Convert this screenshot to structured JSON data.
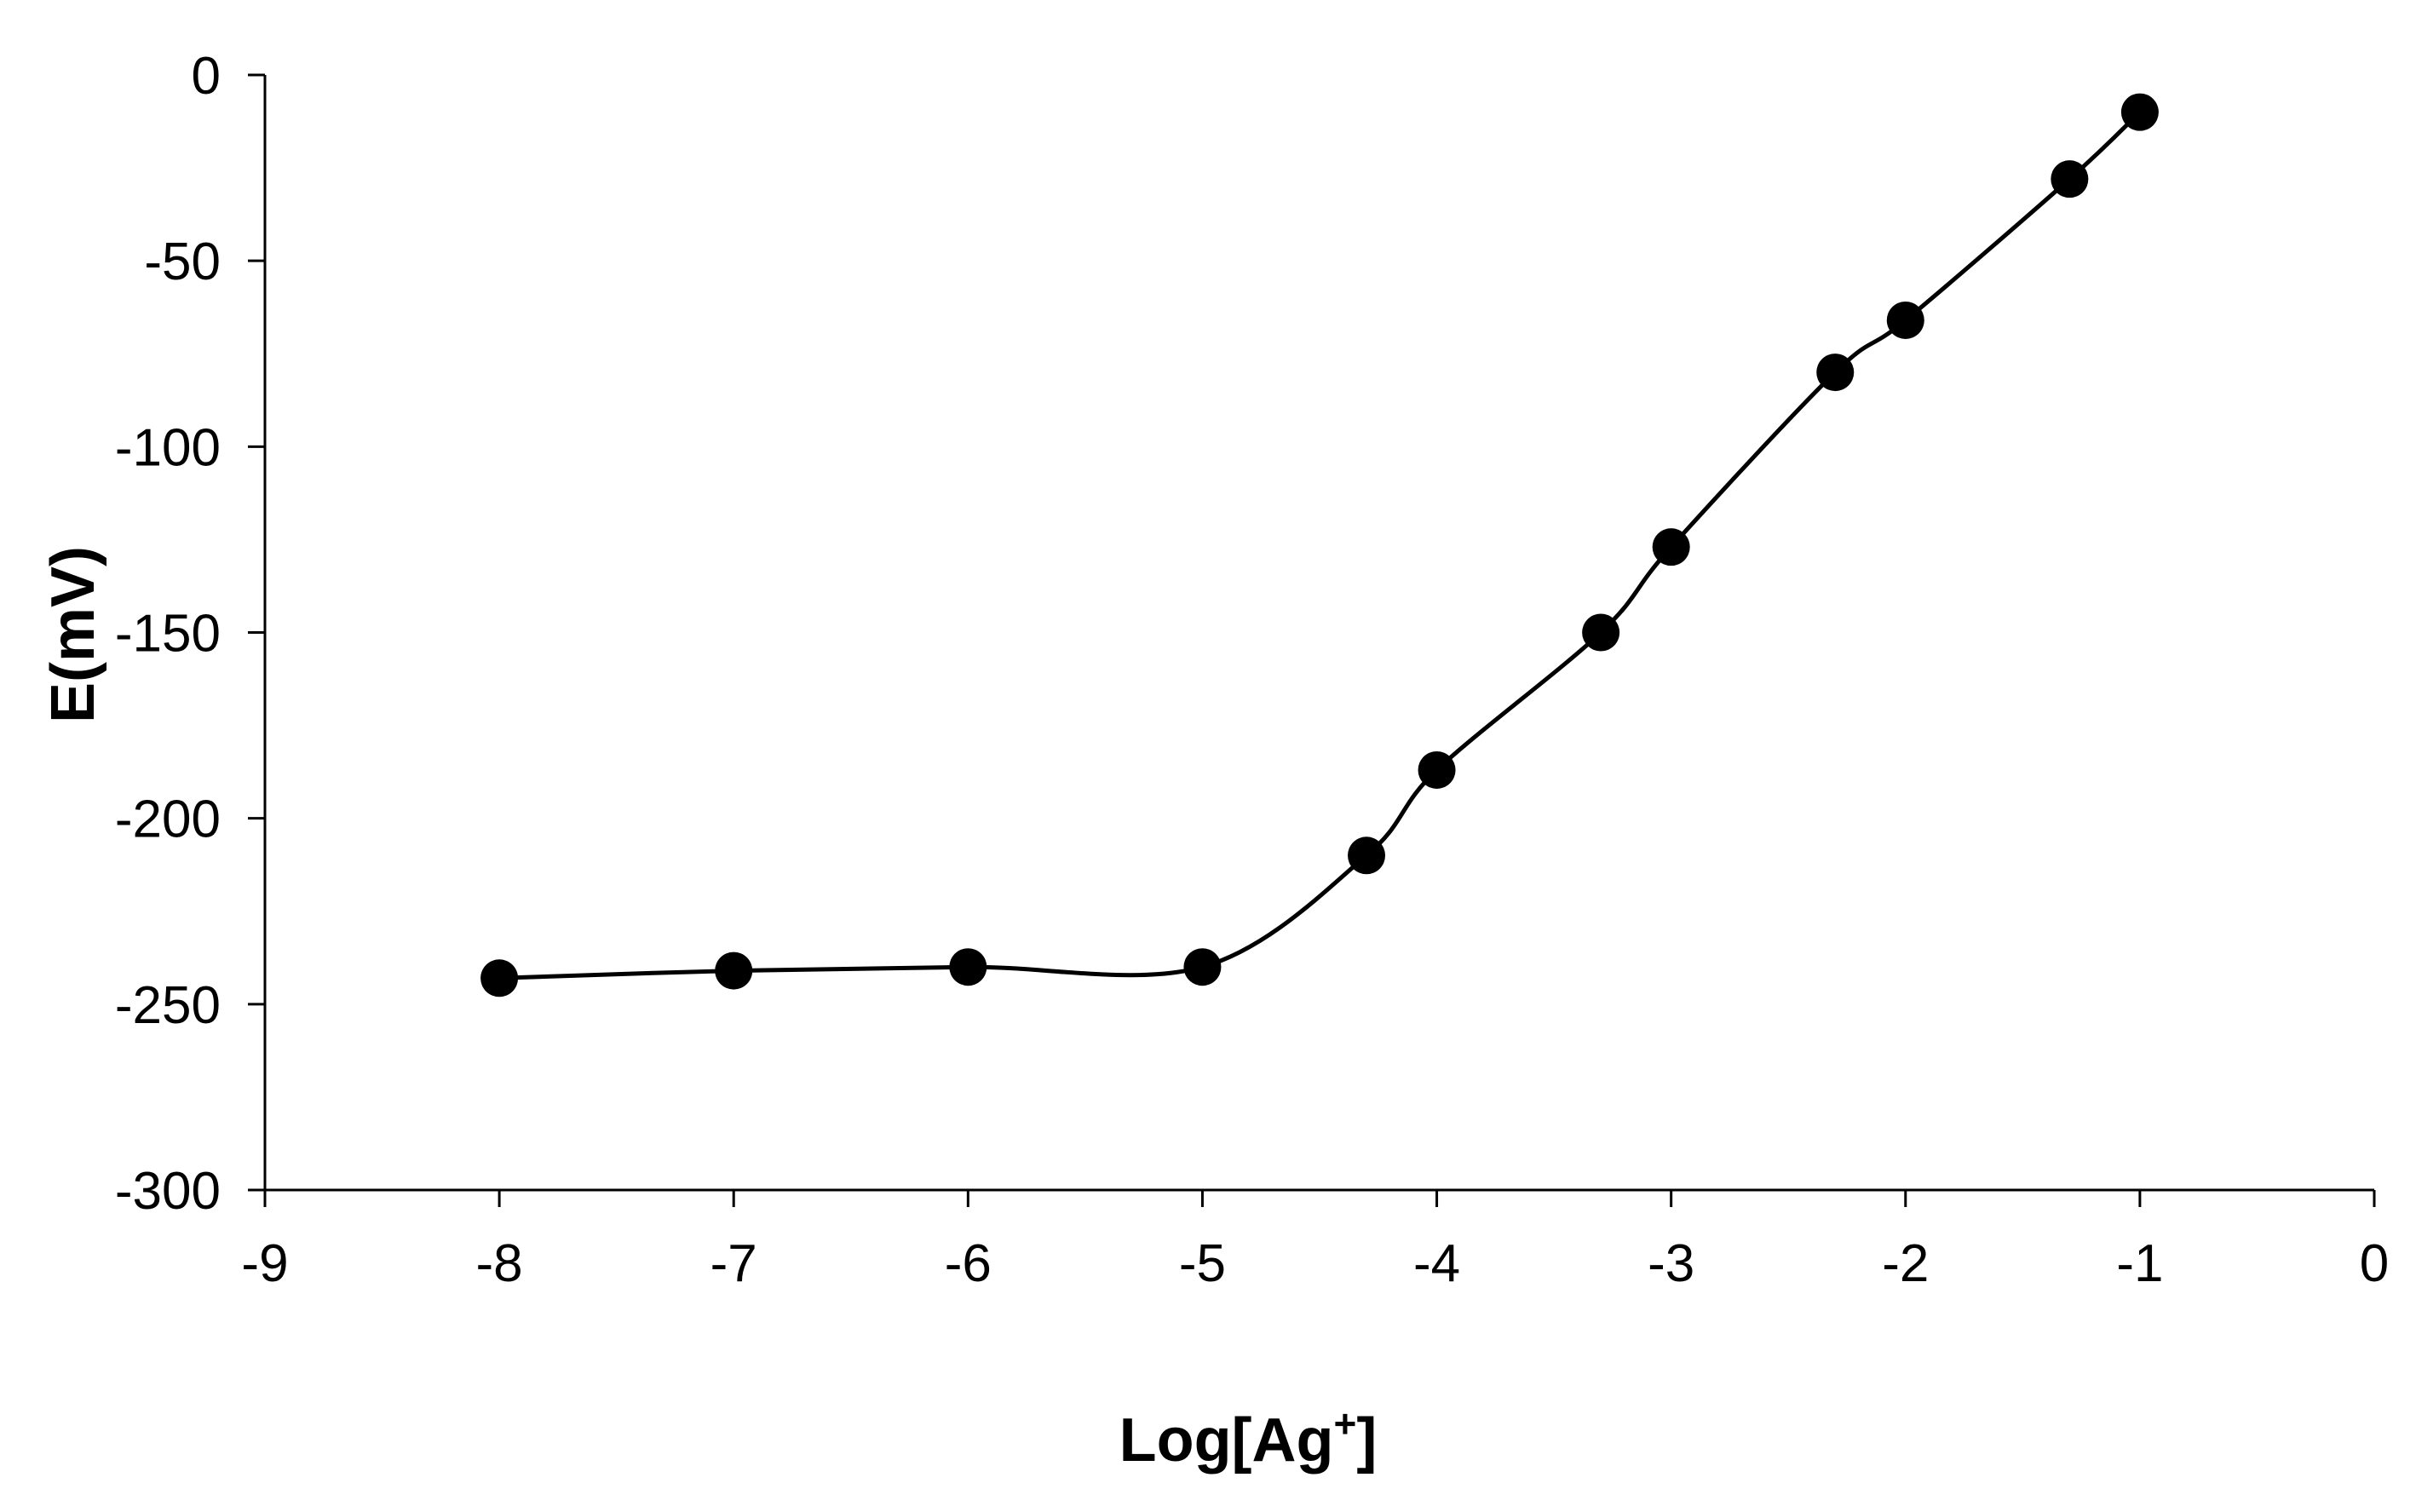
{
  "chart_data": {
    "type": "line",
    "title": "",
    "xlabel": "Log[Ag",
    "xlabel_superscript": "+",
    "xlabel_suffix": "]",
    "ylabel": "E(mV)",
    "xlim": [
      -9,
      0
    ],
    "ylim": [
      -300,
      0
    ],
    "x_ticks": [
      "-9",
      "-8",
      "-7",
      "-6",
      "-5",
      "-4",
      "-3",
      "-2",
      "-1",
      "0"
    ],
    "y_ticks": [
      "0",
      "-50",
      "-100",
      "-150",
      "-200",
      "-250",
      "-300"
    ],
    "grid": false,
    "legend": "none",
    "marker": "filled-circle",
    "line_color": "#000000",
    "series": [
      {
        "x": [
          -8,
          -7,
          -6,
          -5,
          -4.3,
          -4,
          -3.3,
          -3,
          -2.3,
          -2,
          -1.3,
          -1
        ],
        "y": [
          -243,
          -241,
          -240,
          -240,
          -210,
          -187,
          -150,
          -127,
          -80,
          -66,
          -28,
          -10
        ]
      }
    ]
  }
}
